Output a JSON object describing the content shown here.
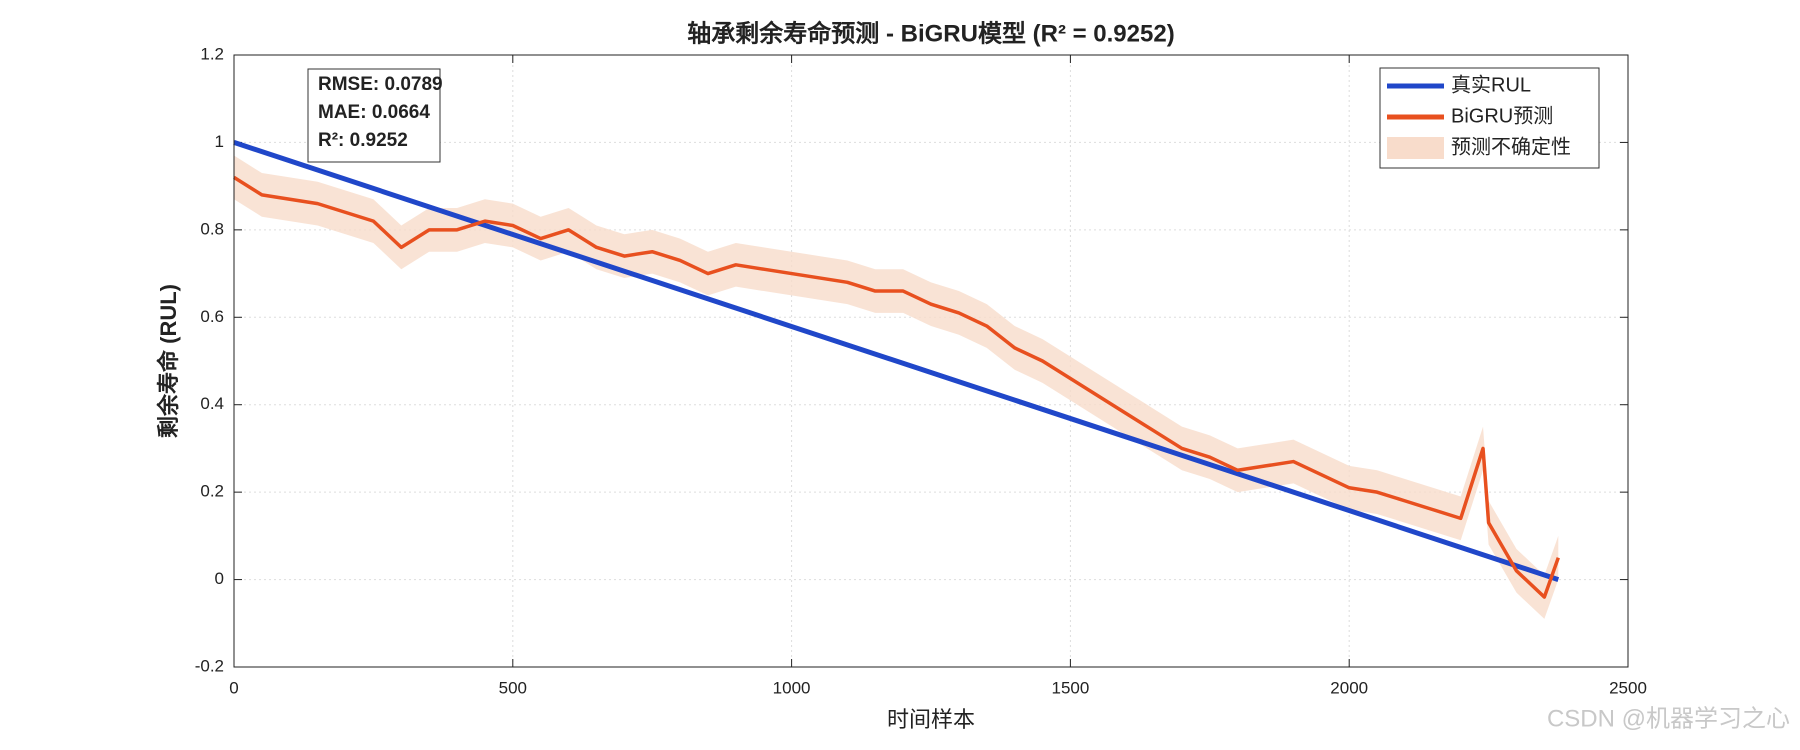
{
  "chart_data": {
    "type": "line",
    "title": "轴承剩余寿命预测 - BiGRU模型 (R² = 0.9252)",
    "x_label": "时间样本",
    "y_label": "剩余寿命 (RUL)",
    "xlim": [
      0,
      2500
    ],
    "ylim": [
      -0.2,
      1.2
    ],
    "xticks": [
      0,
      500,
      1000,
      1500,
      2000,
      2500
    ],
    "yticks": [
      -0.2,
      0,
      0.2,
      0.4,
      0.6,
      0.8,
      1,
      1.2
    ],
    "grid": true,
    "legend_position": "upper right",
    "stats": [
      "RMSE: 0.0789",
      "MAE: 0.0664",
      "R²: 0.9252"
    ],
    "watermark": "CSDN @机器学习之心",
    "x": [
      0,
      50,
      100,
      150,
      200,
      250,
      300,
      350,
      400,
      450,
      500,
      550,
      600,
      650,
      700,
      750,
      800,
      850,
      900,
      950,
      1000,
      1050,
      1100,
      1150,
      1200,
      1250,
      1300,
      1350,
      1400,
      1450,
      1500,
      1550,
      1600,
      1650,
      1700,
      1750,
      1800,
      1850,
      1900,
      1950,
      2000,
      2050,
      2100,
      2150,
      2200,
      2240,
      2250,
      2300,
      2350,
      2375
    ],
    "band": {
      "name": "预测不确定性",
      "color": "#f8dccb",
      "upper": [
        0.97,
        0.93,
        0.92,
        0.91,
        0.89,
        0.87,
        0.81,
        0.85,
        0.85,
        0.87,
        0.86,
        0.83,
        0.85,
        0.81,
        0.79,
        0.8,
        0.78,
        0.75,
        0.77,
        0.76,
        0.75,
        0.74,
        0.73,
        0.71,
        0.71,
        0.68,
        0.66,
        0.63,
        0.58,
        0.55,
        0.51,
        0.47,
        0.43,
        0.39,
        0.35,
        0.33,
        0.3,
        0.31,
        0.32,
        0.29,
        0.26,
        0.25,
        0.23,
        0.21,
        0.19,
        0.35,
        0.18,
        0.07,
        0.01,
        0.1
      ],
      "lower": [
        0.87,
        0.83,
        0.82,
        0.81,
        0.79,
        0.77,
        0.71,
        0.75,
        0.75,
        0.77,
        0.76,
        0.73,
        0.75,
        0.71,
        0.69,
        0.7,
        0.68,
        0.65,
        0.67,
        0.66,
        0.65,
        0.64,
        0.63,
        0.61,
        0.61,
        0.58,
        0.56,
        0.53,
        0.48,
        0.45,
        0.41,
        0.37,
        0.33,
        0.29,
        0.25,
        0.23,
        0.2,
        0.21,
        0.22,
        0.19,
        0.16,
        0.15,
        0.13,
        0.11,
        0.09,
        0.25,
        0.08,
        -0.03,
        -0.09,
        0.0
      ]
    },
    "series": [
      {
        "name": "真实RUL",
        "color": "#2047c9",
        "x": [
          0,
          2375
        ],
        "values": [
          1,
          0
        ]
      },
      {
        "name": "BiGRU预测",
        "color": "#e8501f",
        "values": [
          0.92,
          0.88,
          0.87,
          0.86,
          0.84,
          0.82,
          0.76,
          0.8,
          0.8,
          0.82,
          0.81,
          0.78,
          0.8,
          0.76,
          0.74,
          0.75,
          0.73,
          0.7,
          0.72,
          0.71,
          0.7,
          0.69,
          0.68,
          0.66,
          0.66,
          0.63,
          0.61,
          0.58,
          0.53,
          0.5,
          0.46,
          0.42,
          0.38,
          0.34,
          0.3,
          0.28,
          0.25,
          0.26,
          0.27,
          0.24,
          0.21,
          0.2,
          0.18,
          0.16,
          0.14,
          0.3,
          0.13,
          0.02,
          -0.04,
          0.05
        ]
      }
    ]
  }
}
